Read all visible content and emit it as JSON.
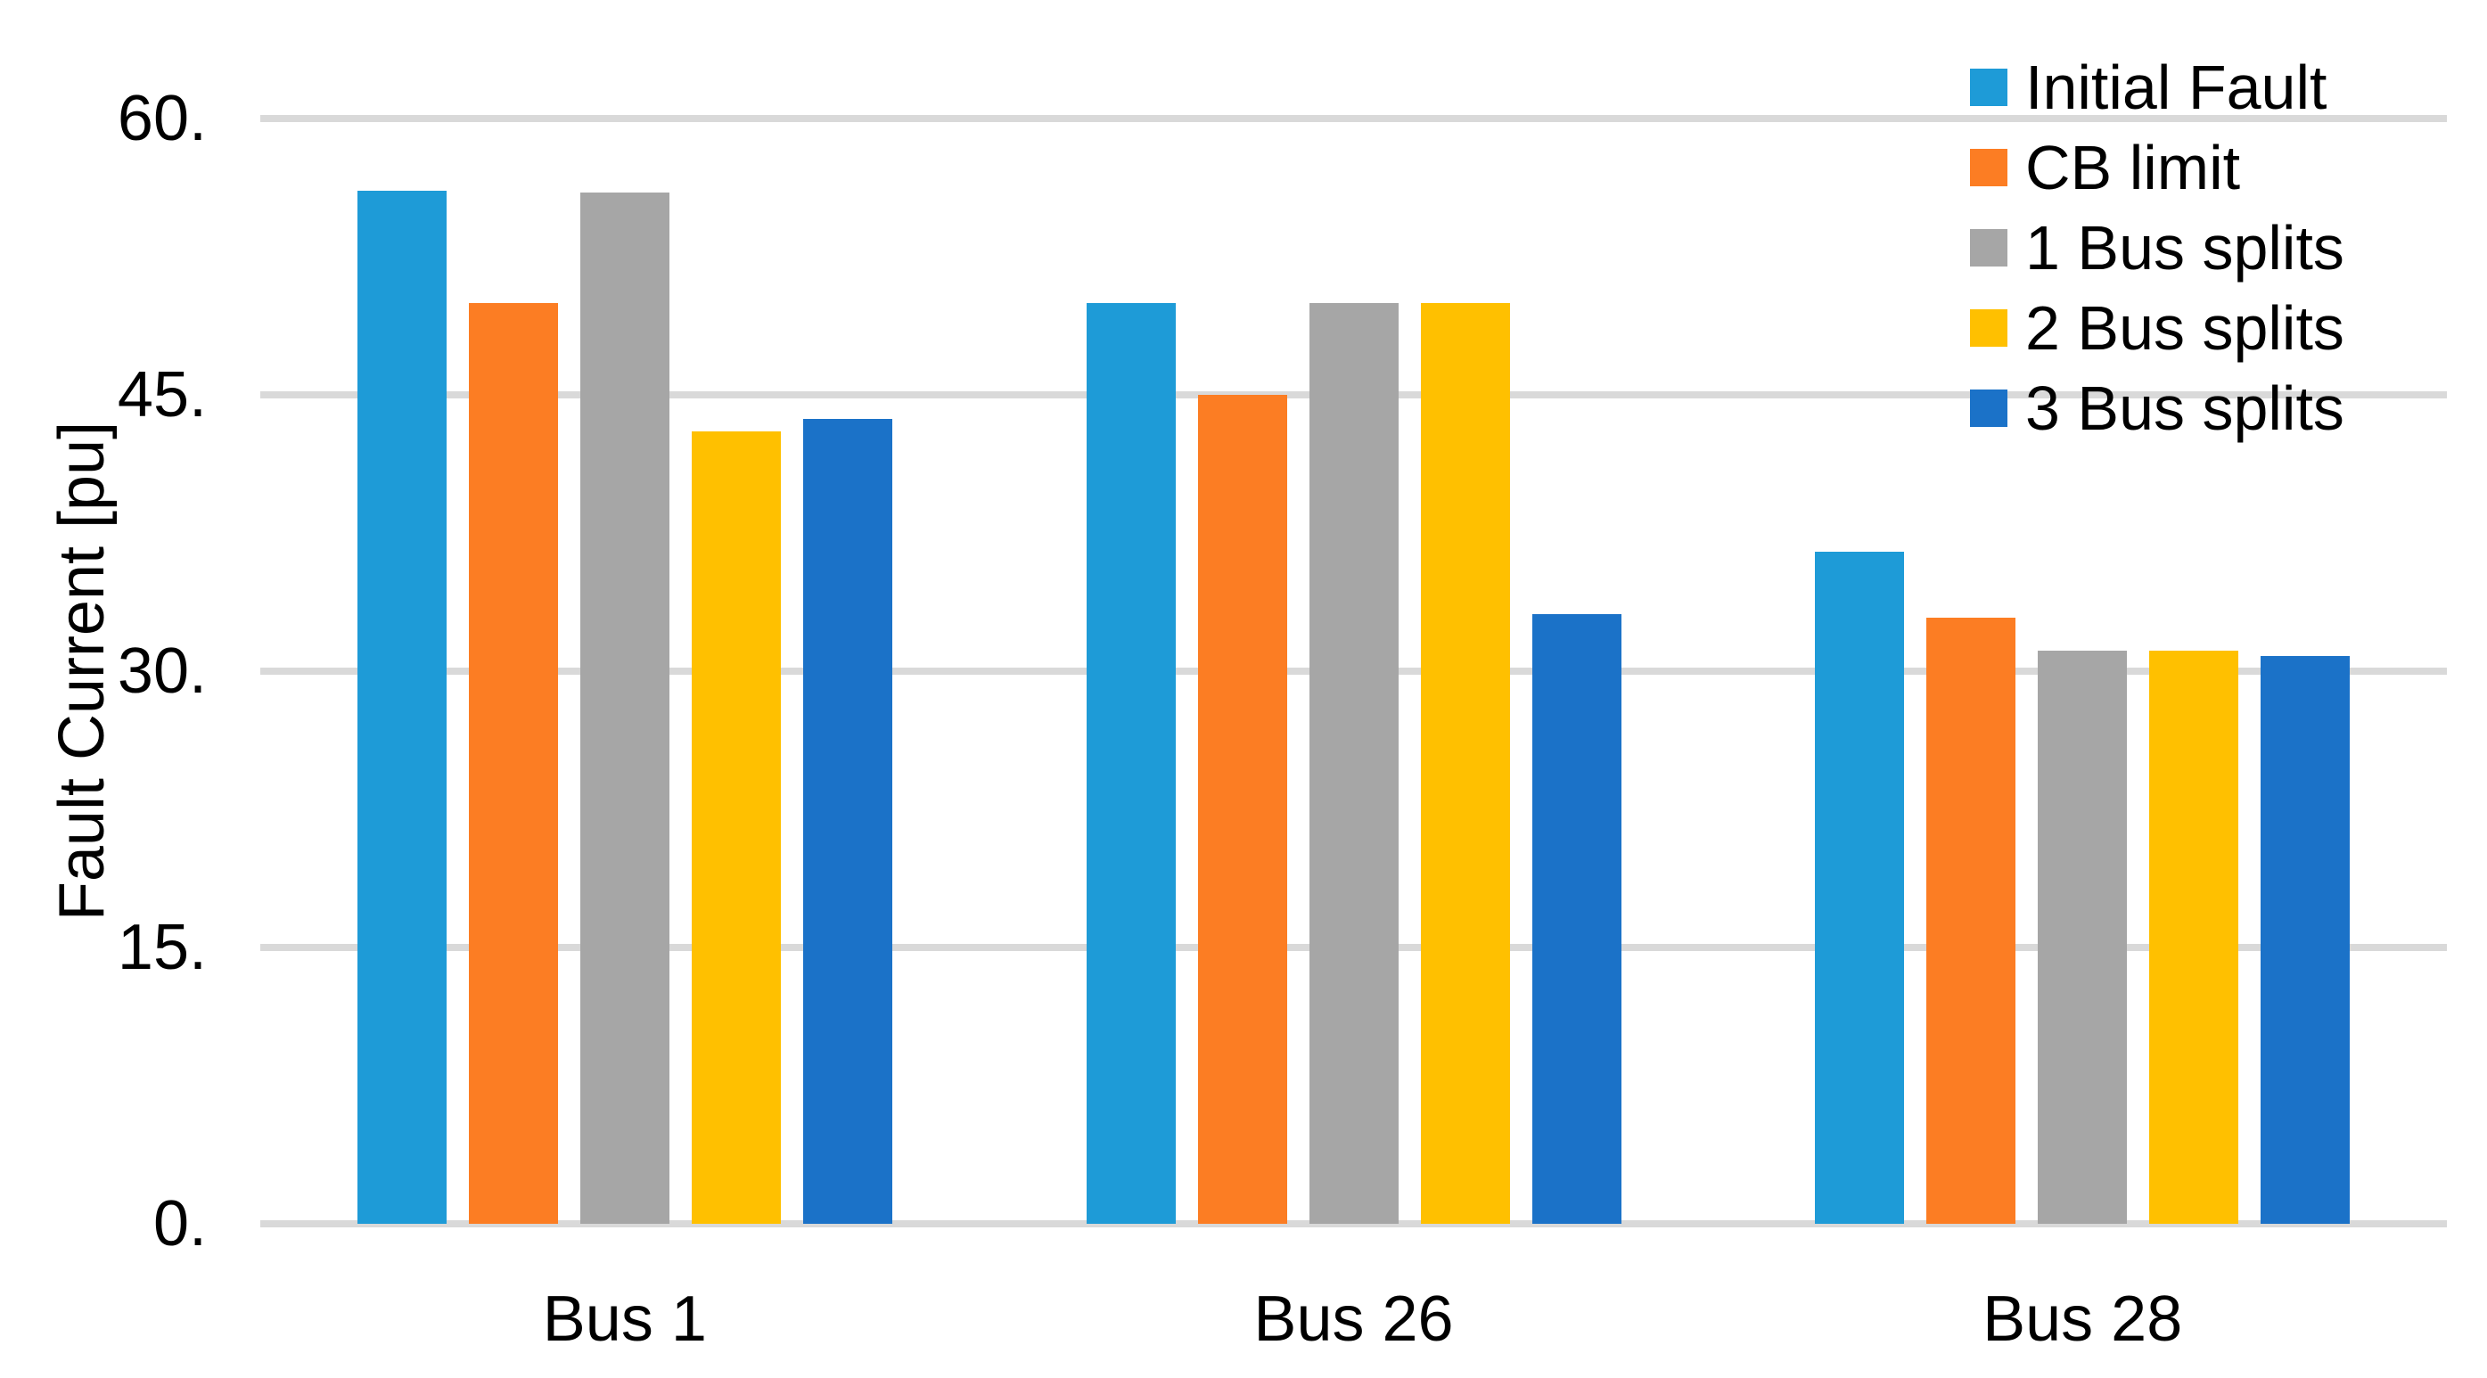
{
  "chart_data": {
    "type": "bar",
    "title": "",
    "xlabel": "",
    "ylabel": "Fault Current [pu]",
    "ylim": [
      0,
      60
    ],
    "ytick_values": [
      0,
      15,
      30,
      45,
      60
    ],
    "ytick_labels": [
      "0.",
      "15.",
      "30.",
      "45.",
      "60."
    ],
    "grid": true,
    "gridline_color": "#D9D9D9",
    "text_color": "#000000",
    "background_color": "#FFFFFF",
    "legend_position": "top-right",
    "categories": [
      "Bus 1",
      "Bus 26",
      "Bus 28"
    ],
    "series": [
      {
        "name": "Initial Fault",
        "color": "#1E9BD7",
        "values": [
          56.1,
          50.0,
          36.5
        ]
      },
      {
        "name": "CB limit",
        "color": "#FC7D23",
        "values": [
          50.0,
          45.0,
          32.9
        ]
      },
      {
        "name": "1 Bus splits",
        "color": "#A6A6A6",
        "values": [
          56.0,
          50.0,
          31.1
        ]
      },
      {
        "name": "2 Bus splits",
        "color": "#FFC000",
        "values": [
          43.0,
          50.0,
          31.1
        ]
      },
      {
        "name": "3 Bus splits",
        "color": "#1B72C8",
        "values": [
          43.7,
          33.1,
          30.8
        ]
      }
    ]
  }
}
